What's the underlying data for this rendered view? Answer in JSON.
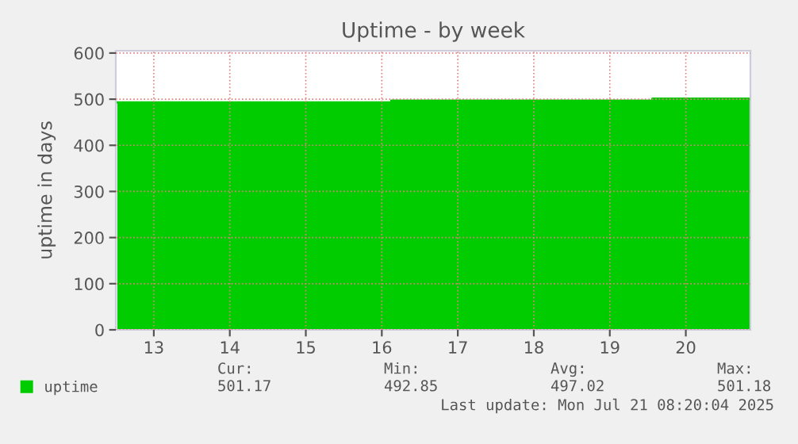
{
  "chart_data": {
    "type": "area",
    "title": "Uptime - by week",
    "ylabel": "uptime in days",
    "x": [
      13.02,
      16.625,
      16.625,
      20.06,
      20.06,
      21.35
    ],
    "series": [
      {
        "name": "uptime",
        "color": "#00cc00",
        "values": [
          493,
          493,
          497,
          497,
          501,
          501
        ]
      }
    ],
    "xlim": [
      13.0,
      21.35
    ],
    "xticks": [
      {
        "value": 13.5,
        "label": "13"
      },
      {
        "value": 14.5,
        "label": "14"
      },
      {
        "value": 15.5,
        "label": "15"
      },
      {
        "value": 16.5,
        "label": "16"
      },
      {
        "value": 17.5,
        "label": "17"
      },
      {
        "value": 18.5,
        "label": "18"
      },
      {
        "value": 19.5,
        "label": "19"
      },
      {
        "value": 20.5,
        "label": "20"
      }
    ],
    "ylim": [
      0,
      605
    ],
    "yticks": [
      0,
      100,
      200,
      300,
      400,
      500,
      600
    ],
    "grid": true,
    "legend": "bottom left",
    "annotations": [
      "Cur:",
      "Min:",
      "Avg:",
      "Max:",
      "501.17",
      "492.85",
      "497.02",
      "501.18",
      "Last update: Mon Jul 21 08:20:04 2025"
    ]
  }
}
